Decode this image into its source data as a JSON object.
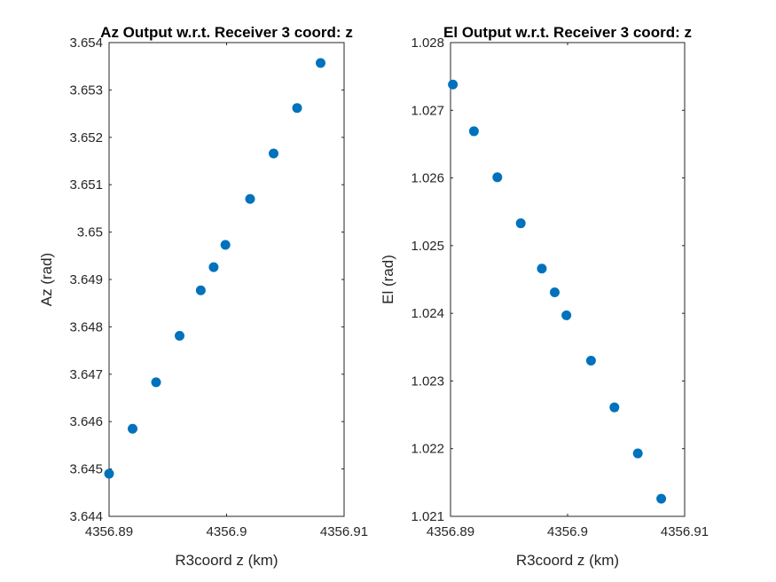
{
  "colors": {
    "marker": "#0072BD",
    "axis": "#262626",
    "background": "#ffffff"
  },
  "chart_data": [
    {
      "type": "scatter",
      "title": "Az Output w.r.t. Receiver 3 coord: z",
      "xlabel": "R3coord z (km)",
      "ylabel": "Az (rad)",
      "xlim": [
        4356.89,
        4356.91
      ],
      "ylim": [
        3.644,
        3.654
      ],
      "xticks": [
        4356.89,
        4356.9,
        4356.91
      ],
      "xtick_labels": [
        "4356.89",
        "4356.9",
        "4356.91"
      ],
      "yticks": [
        3.644,
        3.645,
        3.646,
        3.647,
        3.648,
        3.649,
        3.65,
        3.651,
        3.652,
        3.653,
        3.654
      ],
      "ytick_labels": [
        "3.644",
        "3.645",
        "3.646",
        "3.647",
        "3.648",
        "3.649",
        "3.65",
        "3.651",
        "3.652",
        "3.653",
        "3.654"
      ],
      "grid": false,
      "series": [
        {
          "x": [
            4356.89,
            4356.892,
            4356.894,
            4356.896,
            4356.8978,
            4356.8989,
            4356.8999,
            4356.902,
            4356.904,
            4356.906,
            4356.908
          ],
          "y": [
            3.6449,
            3.64585,
            3.64683,
            3.64781,
            3.64877,
            3.64926,
            3.64973,
            3.6507,
            3.65166,
            3.65262,
            3.65357
          ]
        }
      ]
    },
    {
      "type": "scatter",
      "title": "El Output w.r.t. Receiver 3 coord: z",
      "xlabel": "R3coord z (km)",
      "ylabel": "El (rad)",
      "xlim": [
        4356.89,
        4356.91
      ],
      "ylim": [
        1.021,
        1.028
      ],
      "xticks": [
        4356.89,
        4356.9,
        4356.91
      ],
      "xtick_labels": [
        "4356.89",
        "4356.9",
        "4356.91"
      ],
      "yticks": [
        1.021,
        1.022,
        1.023,
        1.024,
        1.025,
        1.026,
        1.027,
        1.028
      ],
      "ytick_labels": [
        "1.021",
        "1.022",
        "1.023",
        "1.024",
        "1.025",
        "1.026",
        "1.027",
        "1.028"
      ],
      "grid": false,
      "series": [
        {
          "x": [
            4356.8902,
            4356.892,
            4356.894,
            4356.896,
            4356.8978,
            4356.8989,
            4356.8999,
            4356.902,
            4356.904,
            4356.906,
            4356.908
          ],
          "y": [
            1.02738,
            1.02669,
            1.02601,
            1.02533,
            1.02466,
            1.02431,
            1.02397,
            1.0233,
            1.02261,
            1.02193,
            1.02126
          ]
        }
      ]
    }
  ]
}
